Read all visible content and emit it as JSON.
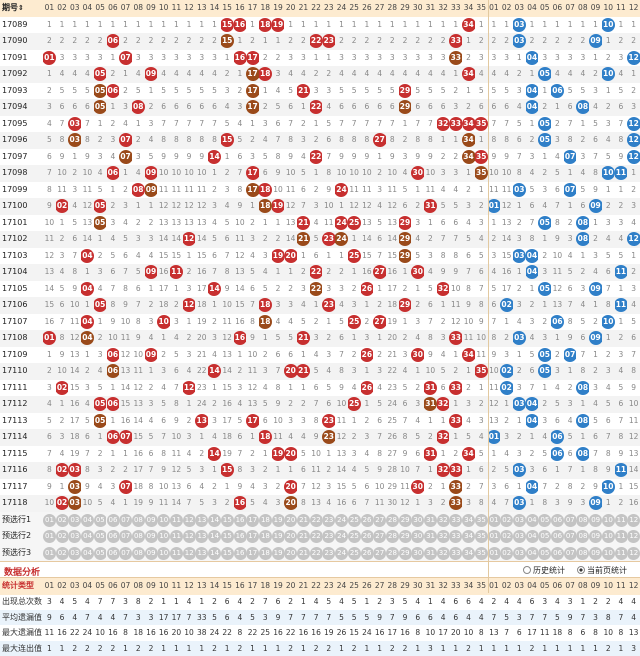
{
  "header": {
    "issue_label": "期号",
    "sort_icon": "sort-arrow-icon",
    "front_numbers": [
      "01",
      "02",
      "03",
      "04",
      "05",
      "06",
      "07",
      "08",
      "09",
      "10",
      "11",
      "12",
      "13",
      "14",
      "15",
      "16",
      "17",
      "18",
      "19",
      "20",
      "21",
      "22",
      "23",
      "24",
      "25",
      "26",
      "27",
      "28",
      "29",
      "30",
      "31",
      "32",
      "33",
      "34",
      "35"
    ],
    "back_numbers": [
      "01",
      "02",
      "03",
      "04",
      "05",
      "06",
      "07",
      "08",
      "09",
      "10",
      "11",
      "12"
    ]
  },
  "colors": {
    "front_ball": "#c72f2f",
    "back_ball": "#2f7fc8",
    "repeat_ball": "#9a4a1a",
    "header_bg": "#fdebd0"
  },
  "draws": [
    {
      "issue": "17089",
      "front": [
        15,
        16,
        18,
        19,
        34
      ],
      "back": [
        3,
        10
      ]
    },
    {
      "issue": "17090",
      "front": [
        6,
        15,
        22,
        23,
        33
      ],
      "back": [
        3,
        9
      ]
    },
    {
      "issue": "17091",
      "front": [
        1,
        7,
        16,
        17,
        33
      ],
      "back": [
        4,
        12
      ]
    },
    {
      "issue": "17092",
      "front": [
        5,
        9,
        17,
        18,
        34
      ],
      "back": [
        5,
        10
      ]
    },
    {
      "issue": "17093",
      "front": [
        5,
        6,
        17,
        21,
        29
      ],
      "back": [
        4,
        6
      ]
    },
    {
      "issue": "17094",
      "front": [
        5,
        8,
        17,
        22,
        29
      ],
      "back": [
        4,
        8
      ]
    },
    {
      "issue": "17095",
      "front": [
        3,
        32,
        33,
        34,
        35
      ],
      "back": [
        5,
        12
      ]
    },
    {
      "issue": "17096",
      "front": [
        3,
        7,
        15,
        27,
        34
      ],
      "back": [
        5,
        12
      ]
    },
    {
      "issue": "17097",
      "front": [
        7,
        14,
        22,
        34,
        35
      ],
      "back": [
        7,
        12
      ]
    },
    {
      "issue": "17098",
      "front": [
        6,
        9,
        17,
        30,
        35
      ],
      "back": [
        10,
        11
      ]
    },
    {
      "issue": "17099",
      "front": [
        8,
        9,
        17,
        18,
        24
      ],
      "back": [
        3,
        7
      ]
    },
    {
      "issue": "17100",
      "front": [
        2,
        5,
        18,
        19,
        31
      ],
      "back": [
        1,
        9
      ]
    },
    {
      "issue": "17101",
      "front": [
        5,
        21,
        24,
        25,
        29
      ],
      "back": [
        5,
        8
      ]
    },
    {
      "issue": "17102",
      "front": [
        12,
        21,
        23,
        24,
        29
      ],
      "back": [
        8,
        12
      ]
    },
    {
      "issue": "17103",
      "front": [
        4,
        19,
        20,
        25,
        29
      ],
      "back": [
        3,
        4
      ]
    },
    {
      "issue": "17104",
      "front": [
        9,
        11,
        22,
        27,
        30
      ],
      "back": [
        4,
        11
      ]
    },
    {
      "issue": "17105",
      "front": [
        4,
        14,
        22,
        26,
        32
      ],
      "back": [
        5,
        9
      ]
    },
    {
      "issue": "17106",
      "front": [
        5,
        12,
        18,
        23,
        29
      ],
      "back": [
        2,
        11
      ]
    },
    {
      "issue": "17107",
      "front": [
        4,
        10,
        18,
        25,
        27
      ],
      "back": [
        6,
        10
      ]
    },
    {
      "issue": "17108",
      "front": [
        1,
        4,
        16,
        21,
        33
      ],
      "back": [
        3,
        9
      ]
    },
    {
      "issue": "17109",
      "front": [
        6,
        9,
        26,
        30,
        34
      ],
      "back": [
        5,
        7
      ]
    },
    {
      "issue": "17110",
      "front": [
        6,
        14,
        20,
        21,
        35
      ],
      "back": [
        2,
        5
      ]
    },
    {
      "issue": "17111",
      "front": [
        2,
        12,
        26,
        31,
        33
      ],
      "back": [
        2,
        8
      ]
    },
    {
      "issue": "17112",
      "front": [
        5,
        6,
        25,
        31,
        32
      ],
      "back": [
        3,
        4
      ]
    },
    {
      "issue": "17113",
      "front": [
        5,
        13,
        17,
        23,
        33
      ],
      "back": [
        4,
        8
      ]
    },
    {
      "issue": "17114",
      "front": [
        6,
        7,
        18,
        23,
        32
      ],
      "back": [
        1,
        6
      ]
    },
    {
      "issue": "17115",
      "front": [
        14,
        19,
        20,
        31,
        34
      ],
      "back": [
        6,
        8
      ]
    },
    {
      "issue": "17116",
      "front": [
        2,
        3,
        15,
        32,
        33
      ],
      "back": [
        3,
        11
      ]
    },
    {
      "issue": "17117",
      "front": [
        3,
        7,
        20,
        30,
        33
      ],
      "back": [
        4,
        10
      ]
    },
    {
      "issue": "17118",
      "front": [
        2,
        3,
        16,
        20,
        33
      ],
      "back": [
        3,
        9
      ]
    }
  ],
  "preselect_rows": [
    "预选行1",
    "预选行2",
    "预选行3"
  ],
  "analysis": {
    "title": "数据分析",
    "history_label": "历史统计",
    "current_label": "当前页统计"
  },
  "stats": {
    "type_label": "统计类型",
    "rows": [
      {
        "label": "出现总次数",
        "values": [
          "3",
          "4",
          "5",
          "4",
          "7",
          "7",
          "3",
          "8",
          "2",
          "1",
          "1",
          "4",
          "1",
          "2",
          "6",
          "4",
          "2",
          "7",
          "6",
          "2",
          "1",
          "4",
          "5",
          "4",
          "5",
          "1",
          "2",
          "3",
          "5",
          "4",
          "1",
          "4",
          "6",
          "6",
          "4",
          "2",
          "4",
          "4",
          "6",
          "3",
          "4",
          "3",
          "1",
          "2",
          "2",
          "4",
          "4"
        ]
      },
      {
        "label": "平均遗漏值",
        "values": [
          "9",
          "6",
          "4",
          "7",
          "4",
          "4",
          "7",
          "3",
          "3",
          "17",
          "17",
          "7",
          "33",
          "5",
          "6",
          "4",
          "5",
          "3",
          "9",
          "7",
          "7",
          "7",
          "7",
          "5",
          "5",
          "5",
          "9",
          "7",
          "9",
          "6",
          "6",
          "4",
          "6",
          "4",
          "4",
          "7",
          "5",
          "3",
          "7",
          "7",
          "5",
          "9",
          "7",
          "3",
          "8",
          "7",
          "4"
        ]
      },
      {
        "label": "最大遗漏值",
        "values": [
          "11",
          "16",
          "22",
          "24",
          "10",
          "16",
          "8",
          "18",
          "16",
          "16",
          "20",
          "10",
          "38",
          "24",
          "22",
          "8",
          "22",
          "25",
          "16",
          "22",
          "16",
          "16",
          "19",
          "26",
          "15",
          "24",
          "16",
          "17",
          "16",
          "8",
          "10",
          "17",
          "20",
          "10",
          "8",
          "13",
          "7",
          "6",
          "17",
          "11",
          "18",
          "8",
          "6",
          "8",
          "10",
          "8",
          "13"
        ]
      },
      {
        "label": "最大连出值",
        "values": [
          "1",
          "1",
          "2",
          "2",
          "2",
          "2",
          "1",
          "2",
          "2",
          "1",
          "1",
          "1",
          "1",
          "2",
          "1",
          "2",
          "1",
          "1",
          "1",
          "2",
          "1",
          "2",
          "2",
          "1",
          "2",
          "1",
          "1",
          "2",
          "2",
          "1",
          "3",
          "1",
          "1",
          "2",
          "1",
          "1",
          "1",
          "1",
          "2",
          "1",
          "1",
          "1",
          "1",
          "1",
          "2",
          "1",
          "3"
        ]
      }
    ]
  }
}
